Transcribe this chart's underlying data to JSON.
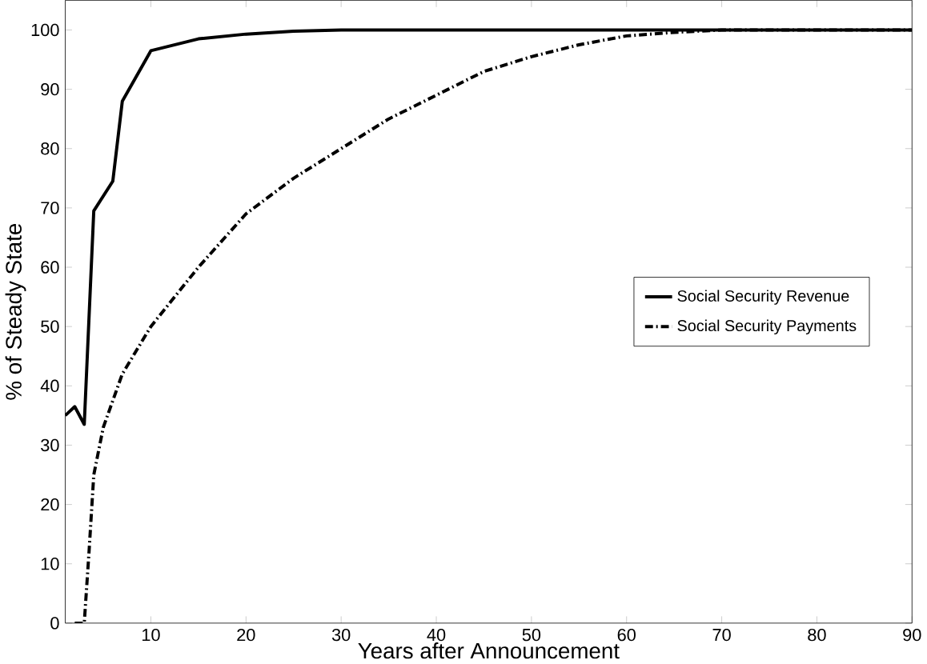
{
  "chart_data": {
    "type": "line",
    "xlabel": "Years after Announcement",
    "ylabel": "% of Steady State",
    "xlim": [
      1,
      90
    ],
    "xticks": [
      10,
      20,
      30,
      40,
      50,
      60,
      70,
      80,
      90
    ],
    "ylim": [
      0,
      105
    ],
    "yticks": [
      0,
      10,
      20,
      30,
      40,
      50,
      60,
      70,
      80,
      90,
      100
    ],
    "grid": false,
    "legend": "right",
    "marker": "none",
    "series": [
      {
        "name": "Social Security Revenue",
        "color": "#000000",
        "line_style": "solid",
        "x": [
          1,
          2,
          3,
          4,
          6,
          7,
          10,
          15,
          20,
          25,
          30,
          40,
          50,
          60,
          70,
          80,
          90
        ],
        "values": [
          35,
          36.5,
          33.5,
          69.5,
          74.5,
          88,
          96.5,
          98.5,
          99.3,
          99.8,
          100,
          100,
          100,
          100,
          100,
          100,
          100
        ]
      },
      {
        "name": "Social Security Payments",
        "color": "#000000",
        "line_style": "dashdot",
        "x": [
          2,
          3,
          3.5,
          4,
          5,
          7,
          10,
          15,
          20,
          25,
          30,
          35,
          40,
          45,
          50,
          55,
          60,
          65,
          70,
          80,
          90
        ],
        "values": [
          0,
          0,
          12,
          25,
          33,
          42,
          50,
          60,
          69,
          75,
          80,
          85,
          89,
          93,
          95.5,
          97.5,
          99,
          99.6,
          100,
          100,
          100
        ]
      }
    ]
  }
}
